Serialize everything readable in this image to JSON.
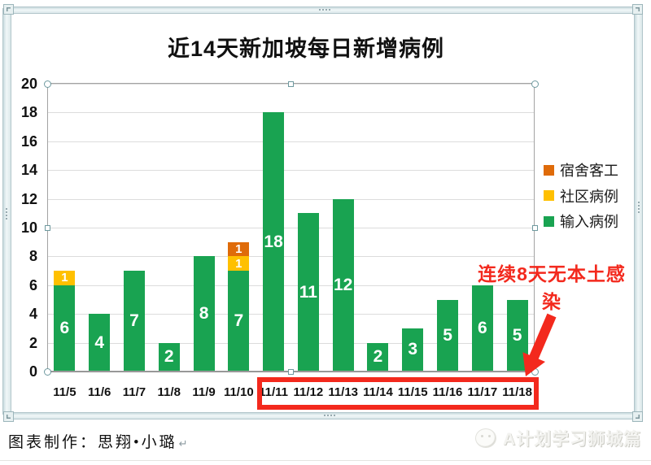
{
  "chart_data": {
    "type": "bar",
    "stacked": true,
    "title": "近14天新加坡每日新增病例",
    "categories": [
      "11/5",
      "11/6",
      "11/7",
      "11/8",
      "11/9",
      "11/10",
      "11/11",
      "11/12",
      "11/13",
      "11/14",
      "11/15",
      "11/16",
      "11/17",
      "11/18"
    ],
    "series": [
      {
        "name": "输入病例",
        "color": "#19a351",
        "values": [
          6,
          4,
          7,
          2,
          8,
          7,
          18,
          11,
          12,
          2,
          3,
          5,
          6,
          5
        ]
      },
      {
        "name": "社区病例",
        "color": "#ffc000",
        "values": [
          1,
          0,
          0,
          0,
          0,
          1,
          0,
          0,
          0,
          0,
          0,
          0,
          0,
          0
        ]
      },
      {
        "name": "宿舍客工",
        "color": "#df6b09",
        "values": [
          0,
          0,
          0,
          0,
          0,
          1,
          0,
          0,
          0,
          0,
          0,
          0,
          0,
          0
        ]
      }
    ],
    "legend_order": [
      "宿舍客工",
      "社区病例",
      "输入病例"
    ],
    "legend_position": "right",
    "ylim": [
      0,
      20
    ],
    "ytick_step": 2,
    "grid": true,
    "bar_label_color": "#ffffff"
  },
  "annotation": {
    "text": "连续8天无本土感染",
    "color": "#f3291d",
    "highlighted_dates_from": "11/11",
    "highlighted_dates_to": "11/18"
  },
  "caption": {
    "text": "图表制作：思翔•小璐",
    "paragraph_mark": "↵"
  },
  "watermark": {
    "text": "A计划学习狮城篇"
  }
}
